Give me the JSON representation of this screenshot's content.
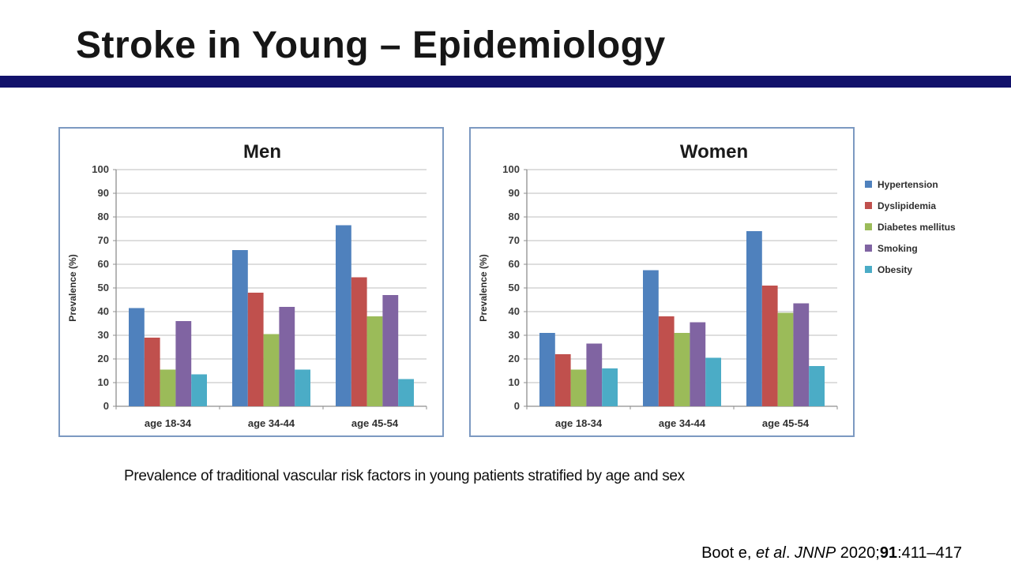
{
  "slide": {
    "title": "Stroke in Young – Epidemiology",
    "accent_bar_color": "#12126b",
    "caption": "Prevalence of traditional vascular risk factors in young patients stratified by age and sex",
    "citation": {
      "authors": "Boot e, ",
      "et_al": "et al",
      "separator": ". ",
      "journal": "JNNP",
      "year": " 2020;",
      "volume": "91",
      "pages": ":411–417"
    }
  },
  "chart_data": [
    {
      "type": "bar",
      "title": "Men",
      "title_offset_x": 14,
      "ylabel": "Prevalence (%)",
      "ylim": [
        0,
        100
      ],
      "ytick_step": 10,
      "grid": true,
      "legend_position": "none",
      "categories": [
        "age 18-34",
        "age 34-44",
        "age 45-54"
      ],
      "series": [
        {
          "name": "Hypertension",
          "color": "#4f81bd",
          "values": [
            41.5,
            66,
            76.5
          ]
        },
        {
          "name": "Dyslipidemia",
          "color": "#c0504d",
          "values": [
            29,
            48,
            54.5
          ]
        },
        {
          "name": "Diabetes mellitus",
          "color": "#9bbb59",
          "values": [
            15.5,
            30.5,
            38
          ]
        },
        {
          "name": "Smoking",
          "color": "#8064a2",
          "values": [
            36,
            42,
            47
          ]
        },
        {
          "name": "Obesity",
          "color": "#4bacc6",
          "values": [
            13.5,
            15.5,
            11.5
          ]
        }
      ]
    },
    {
      "type": "bar",
      "title": "Women",
      "title_offset_x": 66,
      "ylabel": "Prevalence (%)",
      "ylim": [
        0,
        100
      ],
      "ytick_step": 10,
      "grid": true,
      "legend_position": "right-outside",
      "categories": [
        "age 18-34",
        "age 34-44",
        "age 45-54"
      ],
      "series": [
        {
          "name": "Hypertension",
          "color": "#4f81bd",
          "values": [
            31,
            57.5,
            74
          ]
        },
        {
          "name": "Dyslipidemia",
          "color": "#c0504d",
          "values": [
            22,
            38,
            51
          ]
        },
        {
          "name": "Diabetes mellitus",
          "color": "#9bbb59",
          "values": [
            15.5,
            31,
            39.5
          ]
        },
        {
          "name": "Smoking",
          "color": "#8064a2",
          "values": [
            26.5,
            35.5,
            43.5
          ]
        },
        {
          "name": "Obesity",
          "color": "#4bacc6",
          "values": [
            16,
            20.5,
            17
          ]
        }
      ]
    }
  ]
}
